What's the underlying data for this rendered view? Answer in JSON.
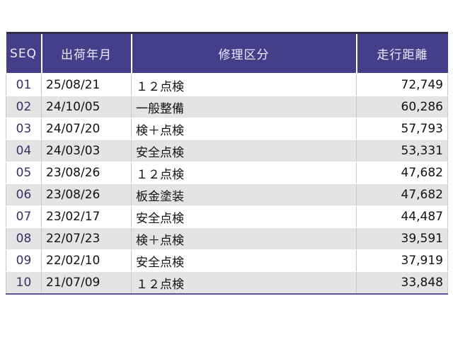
{
  "colors": {
    "header_bg": "#453f8a",
    "header_text": "#eeeaff",
    "row_alt_bg": "#e4e4e4",
    "row_bg": "#ffffff",
    "seq_text": "#333366",
    "body_text": "#111111",
    "cell_border": "#c9c9c9",
    "table_top_border": "#2d2a4e",
    "table_bottom_border": "#5a5490"
  },
  "table": {
    "columns": [
      {
        "id": "seq",
        "label": "SEQ"
      },
      {
        "id": "date",
        "label": "出荷年月"
      },
      {
        "id": "category",
        "label": "修理区分"
      },
      {
        "id": "mileage",
        "label": "走行距離"
      }
    ],
    "rows": [
      {
        "seq": "01",
        "date": "25/08/21",
        "category": "１２点検",
        "mileage": "72,749"
      },
      {
        "seq": "02",
        "date": "24/10/05",
        "category": "一般整備",
        "mileage": "60,286"
      },
      {
        "seq": "03",
        "date": "24/07/20",
        "category": "検＋点検",
        "mileage": "57,793"
      },
      {
        "seq": "04",
        "date": "24/03/03",
        "category": "安全点検",
        "mileage": "53,331"
      },
      {
        "seq": "05",
        "date": "23/08/26",
        "category": "１２点検",
        "mileage": "47,682"
      },
      {
        "seq": "06",
        "date": "23/08/26",
        "category": "板金塗装",
        "mileage": "47,682"
      },
      {
        "seq": "07",
        "date": "23/02/17",
        "category": "安全点検",
        "mileage": "44,487"
      },
      {
        "seq": "08",
        "date": "22/07/23",
        "category": "検＋点検",
        "mileage": "39,591"
      },
      {
        "seq": "09",
        "date": "22/02/10",
        "category": "安全点検",
        "mileage": "37,919"
      },
      {
        "seq": "10",
        "date": "21/07/09",
        "category": "１２点検",
        "mileage": "33,848"
      }
    ]
  }
}
